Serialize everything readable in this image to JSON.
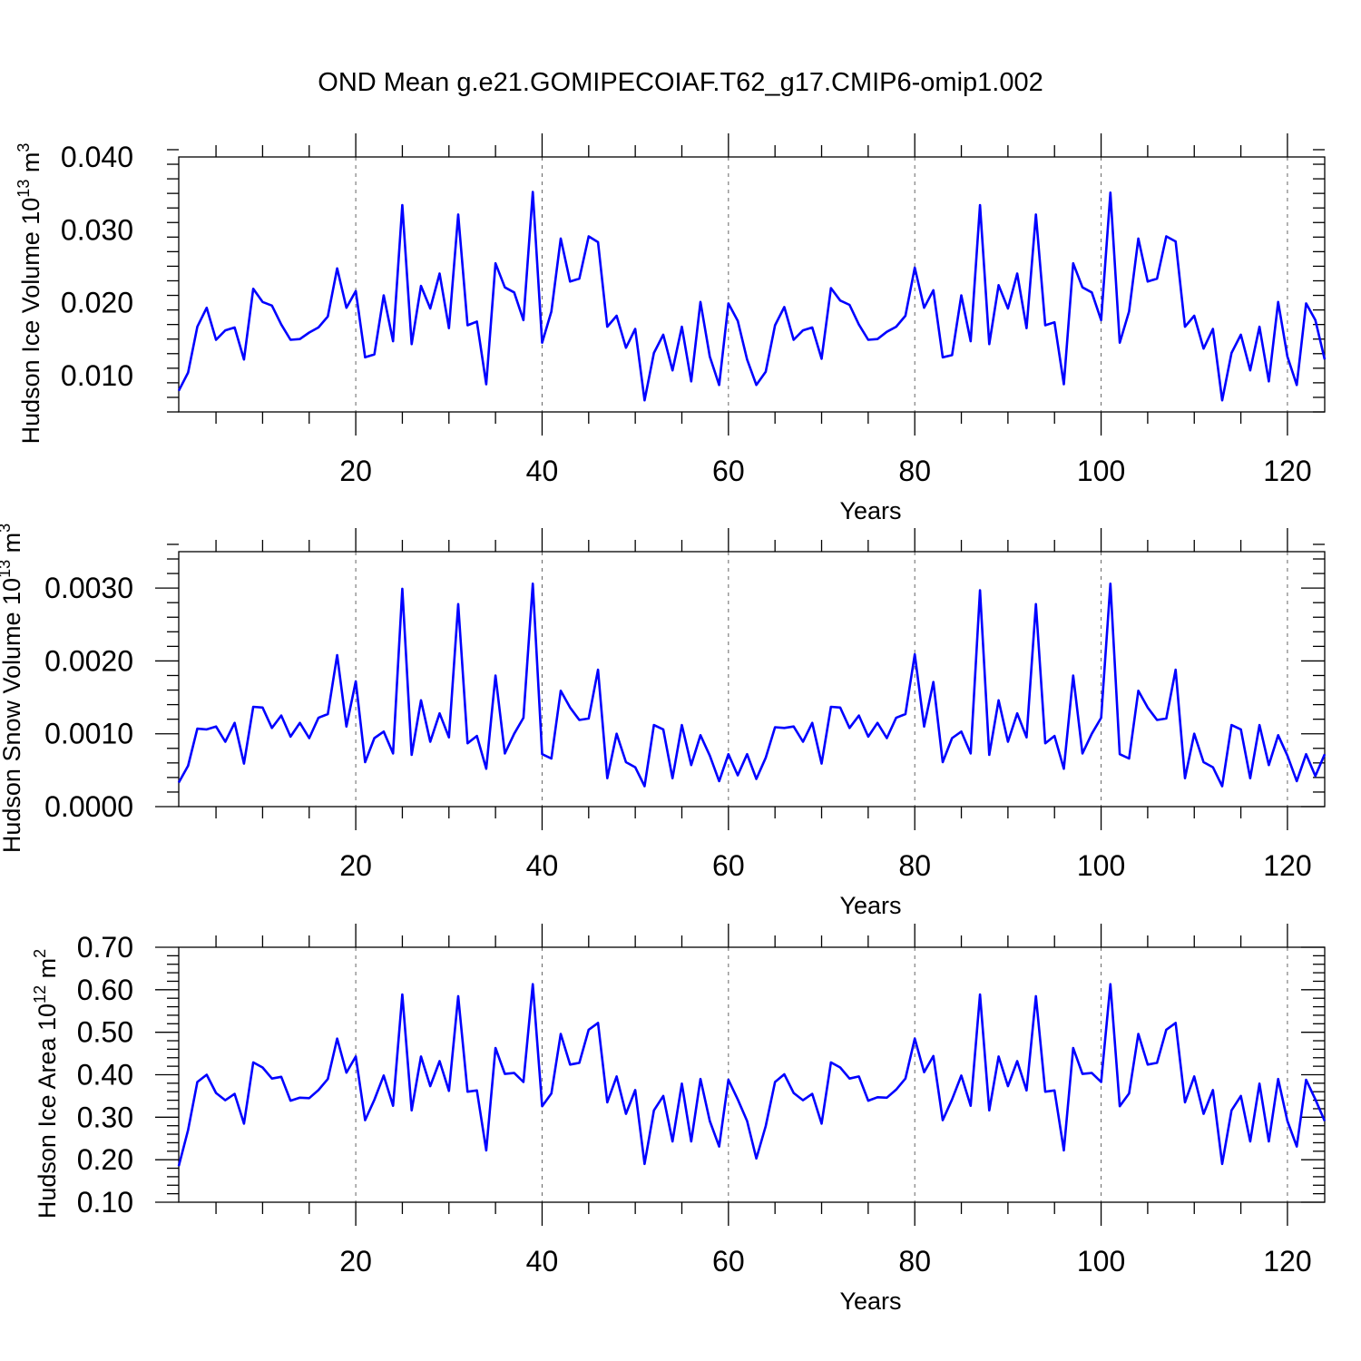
{
  "title": "OND Mean g.e21.GOMIPECOIAF.T62_g17.CMIP6-omip1.002",
  "colors": {
    "line": "#0000ff",
    "axis": "#000000",
    "grid": "#666666"
  },
  "chart_data": [
    {
      "type": "line",
      "name": "ice-volume",
      "ylabel": "Hudson Ice Volume",
      "ylabel_unit_base": "10",
      "ylabel_unit_exp": "13",
      "ylabel_unit": "m",
      "ylabel_unit_unit_exp": "3",
      "xlabel": "Years",
      "xlim": [
        1,
        124
      ],
      "ylim": [
        0.005,
        0.04
      ],
      "xticks": [
        20,
        40,
        60,
        80,
        100,
        120
      ],
      "xtick_labels": [
        "20",
        "40",
        "60",
        "80",
        "100",
        "120"
      ],
      "yticks": [
        0.01,
        0.02,
        0.03,
        0.04
      ],
      "ytick_labels": [
        "0.010",
        "0.020",
        "0.030",
        "0.040"
      ],
      "xminor_step": 5,
      "yminor_step": 0.002,
      "grid_x": [
        20,
        40,
        60,
        80,
        100,
        120
      ],
      "series": [
        {
          "name": "Hudson Ice Volume",
          "color": "#0000ff",
          "values": [
            0.0079,
            0.0104,
            0.0167,
            0.0193,
            0.0149,
            0.0162,
            0.0166,
            0.0122,
            0.0219,
            0.0201,
            0.0196,
            0.017,
            0.0149,
            0.015,
            0.0159,
            0.0166,
            0.0181,
            0.0247,
            0.0193,
            0.0216,
            0.0125,
            0.0129,
            0.021,
            0.0147,
            0.0334,
            0.0143,
            0.0223,
            0.0192,
            0.024,
            0.0165,
            0.0321,
            0.0169,
            0.0174,
            0.0088,
            0.0254,
            0.0221,
            0.0214,
            0.0176,
            0.0352,
            0.0145,
            0.0188,
            0.0288,
            0.0229,
            0.0233,
            0.0291,
            0.0283,
            0.0167,
            0.0182,
            0.0138,
            0.0164,
            0.0066,
            0.0131,
            0.0156,
            0.0107,
            0.0167,
            0.0092,
            0.0201,
            0.0126,
            0.0087,
            0.0199,
            0.0175,
            0.0122,
            0.0087,
            0.0105,
            0.0169,
            0.0194,
            0.0149,
            0.0162,
            0.0166,
            0.0123,
            0.022,
            0.0203,
            0.0197,
            0.017,
            0.0149,
            0.015,
            0.016,
            0.0167,
            0.0182,
            0.0248,
            0.0193,
            0.0217,
            0.0125,
            0.0128,
            0.021,
            0.0147,
            0.0334,
            0.0143,
            0.0224,
            0.0192,
            0.024,
            0.0165,
            0.0321,
            0.0169,
            0.0173,
            0.0088,
            0.0254,
            0.0221,
            0.0214,
            0.0176,
            0.0351,
            0.0145,
            0.0188,
            0.0288,
            0.0229,
            0.0233,
            0.0291,
            0.0284,
            0.0167,
            0.0182,
            0.0137,
            0.0164,
            0.0066,
            0.0131,
            0.0156,
            0.0107,
            0.0167,
            0.0092,
            0.0201,
            0.0126,
            0.0087,
            0.0199,
            0.0176,
            0.0122
          ]
        }
      ]
    },
    {
      "type": "line",
      "name": "snow-volume",
      "ylabel": "Hudson Snow Volume",
      "ylabel_unit_base": "10",
      "ylabel_unit_exp": "13",
      "ylabel_unit": "m",
      "ylabel_unit_unit_exp": "3",
      "xlabel": "Years",
      "xlim": [
        1,
        124
      ],
      "ylim": [
        0.0,
        0.0035
      ],
      "xticks": [
        20,
        40,
        60,
        80,
        100,
        120
      ],
      "xtick_labels": [
        "20",
        "40",
        "60",
        "80",
        "100",
        "120"
      ],
      "yticks": [
        0.0,
        0.001,
        0.002,
        0.003
      ],
      "ytick_labels": [
        "0.0000",
        "0.0010",
        "0.0020",
        "0.0030"
      ],
      "xminor_step": 5,
      "yminor_step": 0.0002,
      "grid_x": [
        20,
        40,
        60,
        80,
        100,
        120
      ],
      "series": [
        {
          "name": "Hudson Snow Volume",
          "color": "#0000ff",
          "values": [
            0.00033,
            0.00056,
            0.00107,
            0.00106,
            0.0011,
            0.00089,
            0.00115,
            0.00059,
            0.00137,
            0.00136,
            0.00108,
            0.00125,
            0.00096,
            0.00115,
            0.00094,
            0.00122,
            0.00127,
            0.00208,
            0.0011,
            0.00172,
            0.00061,
            0.00094,
            0.00103,
            0.00073,
            0.00299,
            0.00071,
            0.00146,
            0.00089,
            0.00128,
            0.00095,
            0.00278,
            0.00087,
            0.00097,
            0.00052,
            0.0018,
            0.00073,
            0.001,
            0.00122,
            0.00306,
            0.00072,
            0.00066,
            0.00159,
            0.00136,
            0.00119,
            0.00121,
            0.00188,
            0.00039,
            0.001,
            0.00061,
            0.00054,
            0.00028,
            0.00112,
            0.00106,
            0.00039,
            0.00112,
            0.00057,
            0.00098,
            0.0007,
            0.00035,
            0.00072,
            0.00043,
            0.00072,
            0.00038,
            0.00067,
            0.00109,
            0.00108,
            0.0011,
            0.00089,
            0.00115,
            0.00059,
            0.00137,
            0.00136,
            0.00108,
            0.00125,
            0.00096,
            0.00115,
            0.00094,
            0.00122,
            0.00127,
            0.00209,
            0.0011,
            0.00171,
            0.00061,
            0.00094,
            0.00103,
            0.00073,
            0.00297,
            0.00071,
            0.00146,
            0.00089,
            0.00128,
            0.00095,
            0.00278,
            0.00087,
            0.00097,
            0.00052,
            0.0018,
            0.00073,
            0.001,
            0.00122,
            0.00306,
            0.00072,
            0.00066,
            0.00159,
            0.00136,
            0.00119,
            0.00121,
            0.00188,
            0.00039,
            0.001,
            0.00061,
            0.00054,
            0.00028,
            0.00112,
            0.00106,
            0.00039,
            0.00112,
            0.00057,
            0.00098,
            0.0007,
            0.00035,
            0.00072,
            0.00042,
            0.00072
          ]
        }
      ]
    },
    {
      "type": "line",
      "name": "ice-area",
      "ylabel": "Hudson Ice Area",
      "ylabel_unit_base": "10",
      "ylabel_unit_exp": "12",
      "ylabel_unit": "m",
      "ylabel_unit_unit_exp": "2",
      "xlabel": "Years",
      "xlim": [
        1,
        124
      ],
      "ylim": [
        0.1,
        0.7
      ],
      "xticks": [
        20,
        40,
        60,
        80,
        100,
        120
      ],
      "xtick_labels": [
        "20",
        "40",
        "60",
        "80",
        "100",
        "120"
      ],
      "yticks": [
        0.1,
        0.2,
        0.3,
        0.4,
        0.5,
        0.6,
        0.7
      ],
      "ytick_labels": [
        "0.10",
        "0.20",
        "0.30",
        "0.40",
        "0.50",
        "0.60",
        "0.70"
      ],
      "xminor_step": 5,
      "yminor_step": 0.02,
      "grid_x": [
        20,
        40,
        60,
        80,
        100,
        120
      ],
      "series": [
        {
          "name": "Hudson Ice Area",
          "color": "#0000ff",
          "values": [
            0.185,
            0.27,
            0.383,
            0.4,
            0.357,
            0.34,
            0.355,
            0.285,
            0.429,
            0.417,
            0.391,
            0.395,
            0.339,
            0.346,
            0.345,
            0.364,
            0.39,
            0.485,
            0.405,
            0.443,
            0.293,
            0.341,
            0.398,
            0.327,
            0.589,
            0.316,
            0.443,
            0.373,
            0.432,
            0.362,
            0.585,
            0.36,
            0.363,
            0.222,
            0.463,
            0.402,
            0.404,
            0.383,
            0.613,
            0.326,
            0.356,
            0.496,
            0.424,
            0.428,
            0.506,
            0.522,
            0.335,
            0.396,
            0.308,
            0.364,
            0.19,
            0.316,
            0.35,
            0.243,
            0.379,
            0.243,
            0.39,
            0.291,
            0.231,
            0.388,
            0.342,
            0.291,
            0.203,
            0.279,
            0.383,
            0.401,
            0.357,
            0.34,
            0.355,
            0.285,
            0.429,
            0.417,
            0.391,
            0.396,
            0.339,
            0.347,
            0.346,
            0.365,
            0.391,
            0.485,
            0.406,
            0.444,
            0.293,
            0.342,
            0.398,
            0.327,
            0.589,
            0.316,
            0.443,
            0.373,
            0.432,
            0.363,
            0.585,
            0.36,
            0.363,
            0.222,
            0.463,
            0.402,
            0.404,
            0.383,
            0.613,
            0.326,
            0.356,
            0.496,
            0.424,
            0.428,
            0.506,
            0.522,
            0.335,
            0.396,
            0.308,
            0.364,
            0.19,
            0.316,
            0.35,
            0.243,
            0.379,
            0.243,
            0.39,
            0.291,
            0.231,
            0.388,
            0.342,
            0.291
          ]
        }
      ]
    }
  ]
}
